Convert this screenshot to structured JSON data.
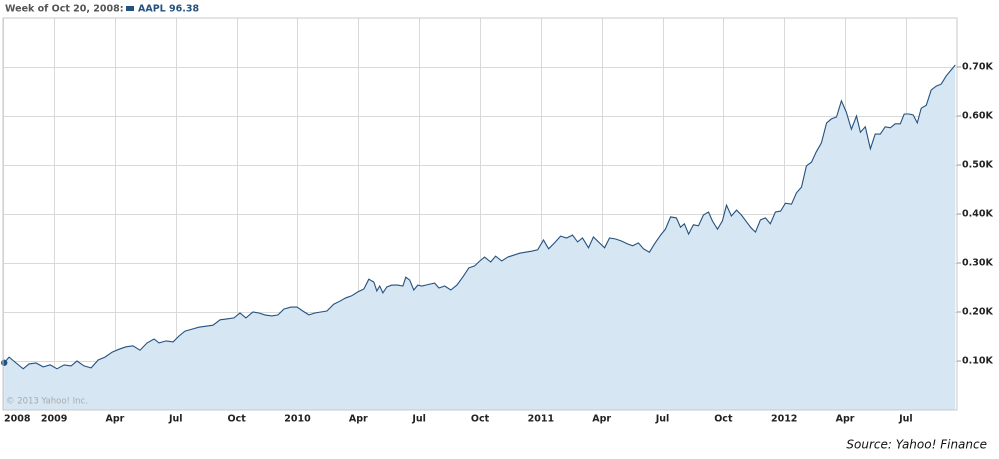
{
  "readout": {
    "date": "Week of Oct 20, 2008:",
    "value": "AAPL 96.38"
  },
  "chart_data": {
    "type": "area",
    "copyright": "© 2013 Yahoo! Inc.",
    "source": "Source: Yahoo! Finance",
    "x": [
      2008.795,
      2008.815,
      2008.844,
      2008.873,
      2008.897,
      2008.926,
      2008.955,
      2008.984,
      2009.012,
      2009.041,
      2009.07,
      2009.094,
      2009.123,
      2009.152,
      2009.181,
      2009.209,
      2009.238,
      2009.267,
      2009.296,
      2009.324,
      2009.353,
      2009.382,
      2009.411,
      2009.431,
      2009.46,
      2009.489,
      2009.513,
      2009.538,
      2009.567,
      2009.595,
      2009.624,
      2009.653,
      2009.682,
      2009.71,
      2009.739,
      2009.764,
      2009.788,
      2009.817,
      2009.842,
      2009.866,
      2009.895,
      2009.92,
      2009.944,
      2009.973,
      2009.998,
      2010.022,
      2010.047,
      2010.071,
      2010.096,
      2010.121,
      2010.149,
      2010.174,
      2010.199,
      2010.223,
      2010.248,
      2010.273,
      2010.293,
      2010.314,
      2010.326,
      2010.338,
      2010.351,
      2010.367,
      2010.387,
      2010.412,
      2010.433,
      2010.445,
      2010.461,
      2010.478,
      2010.494,
      2010.511,
      2010.527,
      2010.544,
      2010.564,
      2010.581,
      2010.605,
      2010.63,
      2010.655,
      2010.679,
      2010.704,
      2010.728,
      2010.749,
      2010.769,
      2010.794,
      2010.814,
      2010.839,
      2010.864,
      2010.888,
      2010.913,
      2010.937,
      2010.962,
      2010.987,
      2011.011,
      2011.032,
      2011.056,
      2011.081,
      2011.106,
      2011.13,
      2011.151,
      2011.171,
      2011.196,
      2011.216,
      2011.241,
      2011.262,
      2011.282,
      2011.307,
      2011.331,
      2011.356,
      2011.377,
      2011.401,
      2011.422,
      2011.446,
      2011.467,
      2011.492,
      2011.512,
      2011.533,
      2011.557,
      2011.574,
      2011.59,
      2011.607,
      2011.627,
      2011.648,
      2011.668,
      2011.689,
      2011.705,
      2011.726,
      2011.746,
      2011.763,
      2011.783,
      2011.804,
      2011.824,
      2011.845,
      2011.865,
      2011.882,
      2011.902,
      2011.923,
      2011.943,
      2011.964,
      2011.985,
      2012.005,
      2012.03,
      2012.05,
      2012.071,
      2012.091,
      2012.112,
      2012.132,
      2012.153,
      2012.174,
      2012.194,
      2012.215,
      2012.235,
      2012.255,
      2012.276,
      2012.297,
      2012.313,
      2012.333,
      2012.354,
      2012.374,
      2012.395,
      2012.415,
      2012.436,
      2012.456,
      2012.477,
      2012.493,
      2012.514,
      2012.53,
      2012.547,
      2012.563,
      2012.584,
      2012.604,
      2012.625,
      2012.645,
      2012.666,
      2012.686,
      2012.703
    ],
    "series": [
      {
        "color": "#24527f",
        "fill": "#d6e6f3",
        "values": [
          0.09638,
          0.108,
          0.096,
          0.084,
          0.094,
          0.096,
          0.088,
          0.092,
          0.084,
          0.092,
          0.09,
          0.1,
          0.09,
          0.086,
          0.102,
          0.108,
          0.118,
          0.124,
          0.129,
          0.131,
          0.122,
          0.137,
          0.145,
          0.137,
          0.141,
          0.139,
          0.151,
          0.161,
          0.165,
          0.169,
          0.171,
          0.173,
          0.184,
          0.186,
          0.188,
          0.198,
          0.188,
          0.2,
          0.198,
          0.194,
          0.192,
          0.194,
          0.206,
          0.21,
          0.21,
          0.202,
          0.194,
          0.198,
          0.2,
          0.202,
          0.216,
          0.222,
          0.229,
          0.233,
          0.241,
          0.247,
          0.267,
          0.261,
          0.243,
          0.253,
          0.239,
          0.251,
          0.255,
          0.255,
          0.253,
          0.271,
          0.265,
          0.245,
          0.255,
          0.253,
          0.255,
          0.257,
          0.259,
          0.249,
          0.253,
          0.245,
          0.255,
          0.271,
          0.29,
          0.294,
          0.304,
          0.312,
          0.302,
          0.314,
          0.304,
          0.312,
          0.316,
          0.32,
          0.322,
          0.324,
          0.327,
          0.347,
          0.329,
          0.341,
          0.355,
          0.351,
          0.357,
          0.343,
          0.351,
          0.331,
          0.353,
          0.341,
          0.331,
          0.351,
          0.349,
          0.345,
          0.339,
          0.335,
          0.341,
          0.329,
          0.322,
          0.339,
          0.357,
          0.369,
          0.394,
          0.392,
          0.373,
          0.38,
          0.359,
          0.378,
          0.376,
          0.398,
          0.404,
          0.386,
          0.369,
          0.386,
          0.418,
          0.396,
          0.408,
          0.398,
          0.384,
          0.371,
          0.363,
          0.388,
          0.392,
          0.38,
          0.404,
          0.406,
          0.422,
          0.42,
          0.443,
          0.455,
          0.498,
          0.506,
          0.527,
          0.545,
          0.586,
          0.594,
          0.598,
          0.631,
          0.608,
          0.573,
          0.6,
          0.567,
          0.578,
          0.533,
          0.563,
          0.563,
          0.578,
          0.576,
          0.584,
          0.584,
          0.604,
          0.604,
          0.602,
          0.586,
          0.616,
          0.622,
          0.653,
          0.661,
          0.665,
          0.682,
          0.694,
          0.704
        ]
      }
    ],
    "xlim": [
      2008.79,
      2012.71
    ],
    "xticks": [
      {
        "value": 2008.79,
        "label": "2008"
      },
      2009,
      {
        "value": 2009.25,
        "label": "Apr"
      },
      {
        "value": 2009.5,
        "label": "Jul"
      },
      {
        "value": 2009.75,
        "label": "Oct"
      },
      2010,
      {
        "value": 2010.25,
        "label": "Apr"
      },
      {
        "value": 2010.5,
        "label": "Jul"
      },
      {
        "value": 2010.75,
        "label": "Oct"
      },
      2011,
      {
        "value": 2011.25,
        "label": "Apr"
      },
      {
        "value": 2011.5,
        "label": "Jul"
      },
      {
        "value": 2011.75,
        "label": "Oct"
      },
      2012,
      {
        "value": 2012.25,
        "label": "Apr"
      },
      {
        "value": 2012.5,
        "label": "Jul"
      }
    ],
    "ylim": [
      0,
      0.8
    ],
    "yticks": [
      {
        "value": 0.1,
        "label": "0.10K"
      },
      {
        "value": 0.2,
        "label": "0.20K"
      },
      {
        "value": 0.3,
        "label": "0.30K"
      },
      {
        "value": 0.4,
        "label": "0.40K"
      },
      {
        "value": 0.5,
        "label": "0.50K"
      },
      {
        "value": 0.6,
        "label": "0.60K"
      },
      {
        "value": 0.7,
        "label": "0.70K"
      }
    ],
    "grid": true,
    "y_axis_side": "right"
  }
}
